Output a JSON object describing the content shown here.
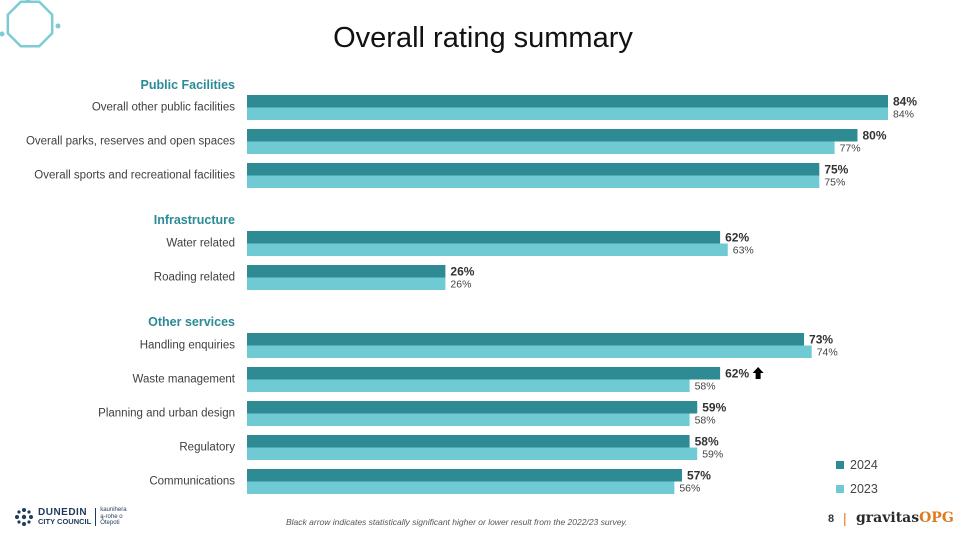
{
  "title": "Overall rating summary",
  "colors": {
    "series_2024": "#2e8b94",
    "series_2023": "#6fcad4",
    "section_heading": "#2a8a95",
    "arrow": "#000000",
    "decoration": "#7ccbd6"
  },
  "chart_data": {
    "type": "bar",
    "orientation": "horizontal",
    "xlim": [
      0,
      84
    ],
    "sections": [
      {
        "name": "Public Facilities",
        "start_index": 0
      },
      {
        "name": "Infrastructure",
        "start_index": 3
      },
      {
        "name": "Other services",
        "start_index": 5
      }
    ],
    "categories": [
      "Overall other public facilities",
      "Overall parks, reserves and open spaces",
      "Overall sports and recreational facilities",
      "Water related",
      "Roading related",
      "Handling enquiries",
      "Waste management",
      "Planning and urban design",
      "Regulatory",
      "Communications"
    ],
    "series": [
      {
        "name": "2024",
        "values": [
          84,
          80,
          75,
          62,
          26,
          73,
          62,
          59,
          58,
          57
        ],
        "labels": [
          "84%",
          "80%",
          "75%",
          "62%",
          "26%",
          "73%",
          "62%",
          "59%",
          "58%",
          "57%"
        ]
      },
      {
        "name": "2023",
        "values": [
          84,
          77,
          75,
          63,
          26,
          74,
          58,
          58,
          59,
          56
        ],
        "labels": [
          "84%",
          "77%",
          "75%",
          "63%",
          "26%",
          "74%",
          "58%",
          "58%",
          "59%",
          "56%"
        ]
      }
    ],
    "significance_arrows": [
      {
        "category_index": 6,
        "direction": "up"
      }
    ],
    "legend_position": "bottom-right"
  },
  "footnote": "Black arrow indicates statistically significant higher or lower result from the 2022/23 survey.",
  "page_number": "8",
  "brand": {
    "main": "gravitas",
    "accent": "OPG",
    "separator": "|"
  },
  "council_logo": {
    "line1": "DUNEDIN",
    "line2": "CITY COUNCIL",
    "maori": [
      "kaunihera",
      "a-rohe o",
      "Ōtepoti"
    ]
  }
}
